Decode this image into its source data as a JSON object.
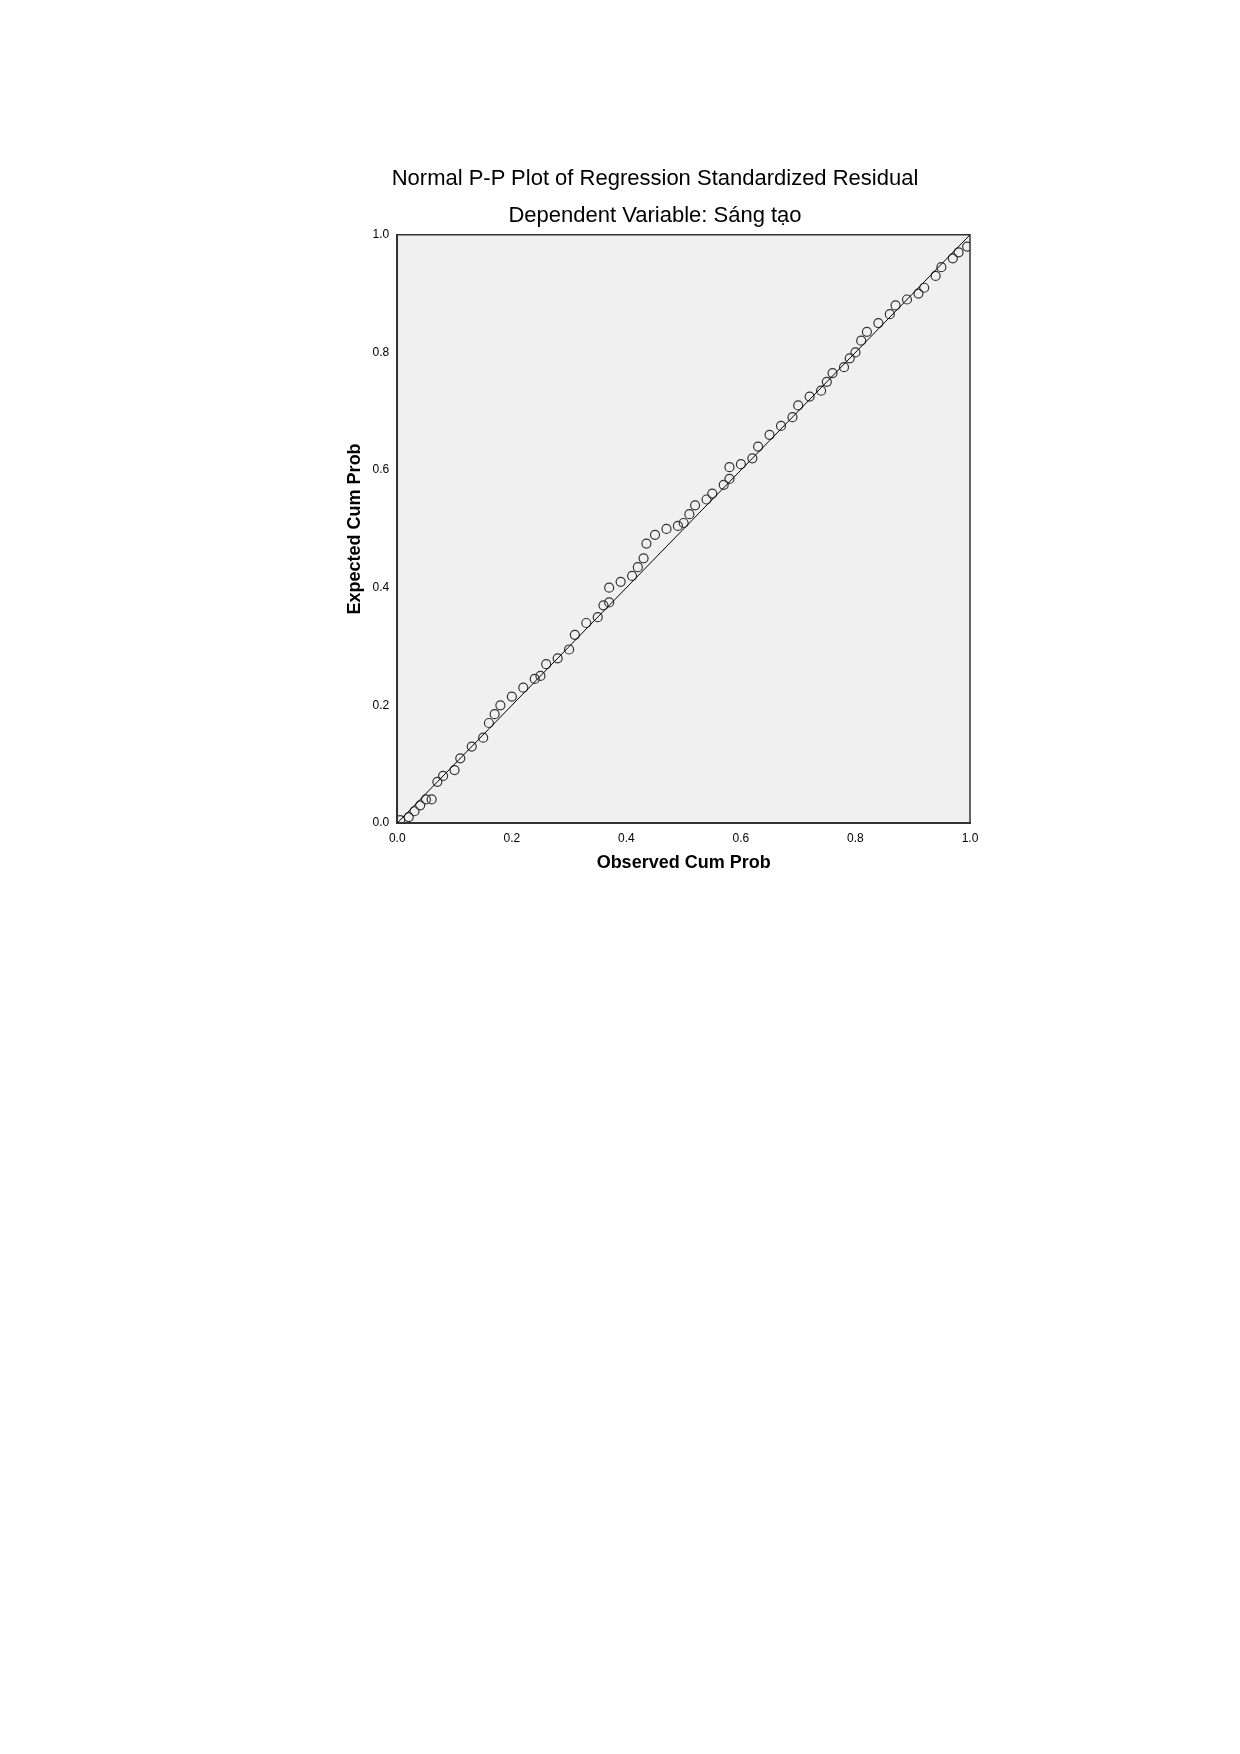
{
  "chart_data": {
    "type": "scatter",
    "title": "Normal P-P Plot of Regression Standardized Residual",
    "subtitle": "Dependent Variable: Sáng tạo",
    "xlabel": "Observed Cum Prob",
    "ylabel": "Expected Cum Prob",
    "xlim": [
      0,
      1
    ],
    "ylim": [
      0,
      1
    ],
    "xticks": [
      {
        "value": 0,
        "label": "0.0"
      },
      {
        "value": 0.2,
        "label": "0.2"
      },
      {
        "value": 0.4,
        "label": "0.4"
      },
      {
        "value": 0.6,
        "label": "0.6"
      },
      {
        "value": 0.8,
        "label": "0.8"
      },
      {
        "value": 1,
        "label": "1.0"
      }
    ],
    "yticks": [
      {
        "value": 0,
        "label": "0.0"
      },
      {
        "value": 0.2,
        "label": "0.2"
      },
      {
        "value": 0.4,
        "label": "0.4"
      },
      {
        "value": 0.6,
        "label": "0.6"
      },
      {
        "value": 0.8,
        "label": "0.8"
      },
      {
        "value": 1,
        "label": "1.0"
      }
    ],
    "grid": false,
    "legend": false,
    "series": [
      {
        "marker": "circle",
        "color": "#333333",
        "x": [
          0.005,
          0.02,
          0.03,
          0.04,
          0.05,
          0.06,
          0.07,
          0.08,
          0.1,
          0.11,
          0.13,
          0.15,
          0.16,
          0.17,
          0.18,
          0.2,
          0.22,
          0.24,
          0.25,
          0.26,
          0.28,
          0.3,
          0.31,
          0.33,
          0.35,
          0.36,
          0.37,
          0.37,
          0.39,
          0.41,
          0.42,
          0.43,
          0.435,
          0.45,
          0.47,
          0.49,
          0.5,
          0.51,
          0.52,
          0.54,
          0.55,
          0.57,
          0.58,
          0.58,
          0.6,
          0.62,
          0.63,
          0.65,
          0.67,
          0.69,
          0.7,
          0.72,
          0.74,
          0.75,
          0.76,
          0.78,
          0.79,
          0.8,
          0.81,
          0.82,
          0.84,
          0.86,
          0.87,
          0.89,
          0.91,
          0.92,
          0.94,
          0.95,
          0.97,
          0.98,
          0.995
        ],
        "values": [
          0.005,
          0.01,
          0.02,
          0.03,
          0.04,
          0.04,
          0.07,
          0.08,
          0.09,
          0.11,
          0.13,
          0.145,
          0.17,
          0.185,
          0.2,
          0.215,
          0.23,
          0.245,
          0.25,
          0.27,
          0.28,
          0.295,
          0.32,
          0.34,
          0.35,
          0.37,
          0.375,
          0.4,
          0.41,
          0.42,
          0.435,
          0.45,
          0.475,
          0.49,
          0.5,
          0.505,
          0.51,
          0.525,
          0.54,
          0.55,
          0.56,
          0.575,
          0.585,
          0.605,
          0.61,
          0.62,
          0.64,
          0.66,
          0.675,
          0.69,
          0.71,
          0.725,
          0.735,
          0.75,
          0.765,
          0.775,
          0.79,
          0.8,
          0.82,
          0.835,
          0.85,
          0.865,
          0.88,
          0.89,
          0.9,
          0.91,
          0.93,
          0.945,
          0.96,
          0.97,
          0.98
        ]
      },
      {
        "type": "line",
        "marker": "none",
        "color": "#000000",
        "x": [
          0,
          1
        ],
        "values": [
          0,
          1
        ]
      }
    ]
  }
}
